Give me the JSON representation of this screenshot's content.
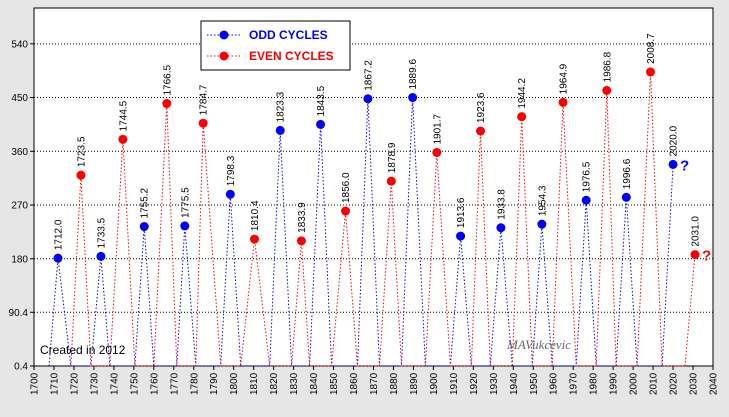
{
  "colors": {
    "odd": "#0000ff",
    "even": "#ff0000",
    "frame_bg": "#e6e6e6",
    "plot_bg": "#ffffff",
    "grid": "#000000"
  },
  "legend": {
    "position": "top-left",
    "odd_label": "ODD CYCLES",
    "even_label": "EVEN CYCLES"
  },
  "annotations": {
    "created": "Created  in  2012",
    "signature": "MAVukcevic"
  },
  "chart_data": {
    "type": "line",
    "title": "",
    "xlabel": "",
    "ylabel": "",
    "xlim": [
      1700,
      2040
    ],
    "ylim": [
      0.4,
      600
    ],
    "grid": true,
    "x_ticks": [
      "1700",
      "1710",
      "1720",
      "1730",
      "1740",
      "1750",
      "1760",
      "1770",
      "1780",
      "1790",
      "1800",
      "1810",
      "1820",
      "1830",
      "1840",
      "1850",
      "1860",
      "1870",
      "1880",
      "1890",
      "1900",
      "1910",
      "1920",
      "1930",
      "1940",
      "1950",
      "1960",
      "1970",
      "1980",
      "1990",
      "2000",
      "2010",
      "2020",
      "2030",
      "2040"
    ],
    "y_ticks": [
      "0.4",
      "90.4",
      "180",
      "270",
      "360",
      "450",
      "540"
    ],
    "series": [
      {
        "name": "ODD CYCLES",
        "color": "#0000ff",
        "points": [
          {
            "x": 1707.5,
            "y": 0.4
          },
          {
            "x": 1712.0,
            "y": 181,
            "label": "1712.0"
          },
          {
            "x": 1718.5,
            "y": 0.4
          },
          {
            "x": 1728.5,
            "y": 0.4
          },
          {
            "x": 1733.5,
            "y": 184,
            "label": "1733.5"
          },
          {
            "x": 1738.0,
            "y": 0.4
          },
          {
            "x": 1750.5,
            "y": 0.4
          },
          {
            "x": 1755.2,
            "y": 234,
            "label": "1755.2"
          },
          {
            "x": 1760.0,
            "y": 0.4
          },
          {
            "x": 1771.5,
            "y": 0.4
          },
          {
            "x": 1775.5,
            "y": 235,
            "label": "1775.5"
          },
          {
            "x": 1781.0,
            "y": 0.4
          },
          {
            "x": 1793.5,
            "y": 0.4
          },
          {
            "x": 1798.3,
            "y": 288,
            "label": "1798.3"
          },
          {
            "x": 1803.5,
            "y": 0.4
          },
          {
            "x": 1818.0,
            "y": 0.4
          },
          {
            "x": 1823.3,
            "y": 395,
            "label": "1823.3"
          },
          {
            "x": 1829.0,
            "y": 0.4
          },
          {
            "x": 1838.0,
            "y": 0.4
          },
          {
            "x": 1843.5,
            "y": 405,
            "label": "1843.5"
          },
          {
            "x": 1849.0,
            "y": 0.4
          },
          {
            "x": 1862.0,
            "y": 0.4
          },
          {
            "x": 1867.2,
            "y": 448,
            "label": "1867.2"
          },
          {
            "x": 1873.0,
            "y": 0.4
          },
          {
            "x": 1884.0,
            "y": 0.4
          },
          {
            "x": 1889.6,
            "y": 450,
            "label": "1889.6"
          },
          {
            "x": 1896.0,
            "y": 0.4
          },
          {
            "x": 1908.5,
            "y": 0.4
          },
          {
            "x": 1913.6,
            "y": 218,
            "label": "1913.6"
          },
          {
            "x": 1919.0,
            "y": 0.4
          },
          {
            "x": 1928.5,
            "y": 0.4
          },
          {
            "x": 1933.8,
            "y": 232,
            "label": "1933.8"
          },
          {
            "x": 1939.5,
            "y": 0.4
          },
          {
            "x": 1949.5,
            "y": 0.4
          },
          {
            "x": 1954.3,
            "y": 238,
            "label": "1954.3"
          },
          {
            "x": 1959.5,
            "y": 0.4
          },
          {
            "x": 1971.5,
            "y": 0.4
          },
          {
            "x": 1976.5,
            "y": 278,
            "label": "1976.5"
          },
          {
            "x": 1981.5,
            "y": 0.4
          },
          {
            "x": 1991.5,
            "y": 0.4
          },
          {
            "x": 1996.6,
            "y": 283,
            "label": "1996.6"
          },
          {
            "x": 2002.0,
            "y": 0.4
          },
          {
            "x": 2014.5,
            "y": 0.4
          },
          {
            "x": 2020.0,
            "y": 338,
            "label": "2020.0",
            "suffix": "?"
          }
        ]
      },
      {
        "name": "EVEN CYCLES",
        "color": "#ff0000",
        "points": [
          {
            "x": 1718.5,
            "y": 0.4
          },
          {
            "x": 1723.5,
            "y": 320,
            "label": "1723.5"
          },
          {
            "x": 1728.5,
            "y": 0.4
          },
          {
            "x": 1738.0,
            "y": 0.4
          },
          {
            "x": 1744.5,
            "y": 380,
            "label": "1744.5"
          },
          {
            "x": 1750.5,
            "y": 0.4
          },
          {
            "x": 1760.0,
            "y": 0.4
          },
          {
            "x": 1766.5,
            "y": 440,
            "label": "1766.5"
          },
          {
            "x": 1771.5,
            "y": 0.4
          },
          {
            "x": 1781.0,
            "y": 0.4
          },
          {
            "x": 1784.7,
            "y": 407,
            "label": "1784.7"
          },
          {
            "x": 1793.5,
            "y": 0.4
          },
          {
            "x": 1803.5,
            "y": 0.4
          },
          {
            "x": 1810.4,
            "y": 213,
            "label": "1810.4"
          },
          {
            "x": 1818.0,
            "y": 0.4
          },
          {
            "x": 1829.0,
            "y": 0.4
          },
          {
            "x": 1833.9,
            "y": 210,
            "label": "1833.9"
          },
          {
            "x": 1838.0,
            "y": 0.4
          },
          {
            "x": 1849.0,
            "y": 0.4
          },
          {
            "x": 1856.0,
            "y": 260,
            "label": "1856.0"
          },
          {
            "x": 1862.0,
            "y": 0.4
          },
          {
            "x": 1873.0,
            "y": 0.4
          },
          {
            "x": 1878.9,
            "y": 310,
            "label": "1878.9"
          },
          {
            "x": 1884.0,
            "y": 0.4
          },
          {
            "x": 1896.0,
            "y": 0.4
          },
          {
            "x": 1901.7,
            "y": 358,
            "label": "1901.7"
          },
          {
            "x": 1908.5,
            "y": 0.4
          },
          {
            "x": 1919.0,
            "y": 0.4
          },
          {
            "x": 1923.6,
            "y": 394,
            "label": "1923.6"
          },
          {
            "x": 1928.5,
            "y": 0.4
          },
          {
            "x": 1939.5,
            "y": 0.4
          },
          {
            "x": 1944.2,
            "y": 418,
            "label": "1944.2"
          },
          {
            "x": 1949.5,
            "y": 0.4
          },
          {
            "x": 1959.5,
            "y": 0.4
          },
          {
            "x": 1964.9,
            "y": 442,
            "label": "1964.9"
          },
          {
            "x": 1971.5,
            "y": 0.4
          },
          {
            "x": 1981.5,
            "y": 0.4
          },
          {
            "x": 1986.8,
            "y": 462,
            "label": "1986.8"
          },
          {
            "x": 1991.5,
            "y": 0.4
          },
          {
            "x": 2002.0,
            "y": 0.4
          },
          {
            "x": 2008.7,
            "y": 493,
            "label": "2008.7"
          },
          {
            "x": 2014.5,
            "y": 0.4
          },
          {
            "x": 2026.0,
            "y": 0.4
          },
          {
            "x": 2031.0,
            "y": 187,
            "label": "2031.0",
            "suffix": "?"
          }
        ]
      }
    ]
  }
}
